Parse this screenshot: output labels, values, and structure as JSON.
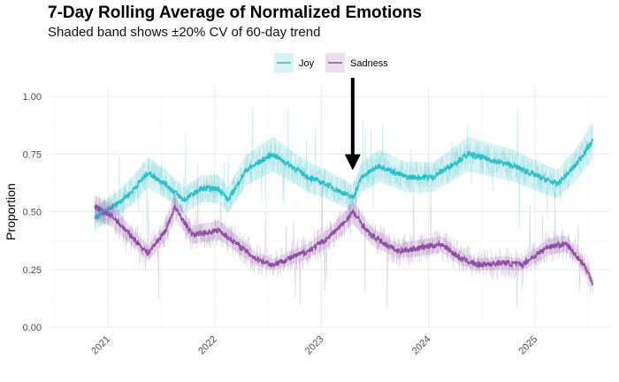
{
  "chart_data": {
    "type": "line",
    "title": "7-Day Rolling Average of Normalized Emotions",
    "subtitle": "Shaded band shows ±20% CV of 60-day trend",
    "xlabel": "",
    "ylabel": "Proportion",
    "ylim": [
      0,
      1
    ],
    "y_ticks": [
      "0.00",
      "0.25",
      "0.50",
      "0.75",
      "1.00"
    ],
    "x_ticks": [
      "2021",
      "2022",
      "2023",
      "2024",
      "2025"
    ],
    "grid": true,
    "legend_position": "top",
    "series": [
      {
        "name": "Joy",
        "color": "#2bbfc7",
        "x": [
          "2020-11",
          "2021-01",
          "2021-03",
          "2021-05",
          "2021-07",
          "2021-09",
          "2021-11",
          "2022-01",
          "2022-02",
          "2022-04",
          "2022-07",
          "2022-09",
          "2022-11",
          "2023-01",
          "2023-04",
          "2023-05",
          "2023-07",
          "2023-10",
          "2024-01",
          "2024-03",
          "2024-05",
          "2024-08",
          "2024-10",
          "2025-01",
          "2025-03",
          "2025-05",
          "2025-07"
        ],
        "values": [
          0.47,
          0.52,
          0.58,
          0.67,
          0.62,
          0.55,
          0.6,
          0.6,
          0.55,
          0.68,
          0.75,
          0.7,
          0.65,
          0.62,
          0.56,
          0.65,
          0.7,
          0.65,
          0.65,
          0.7,
          0.75,
          0.72,
          0.7,
          0.65,
          0.62,
          0.7,
          0.81
        ]
      },
      {
        "name": "Sadness",
        "color": "#8e4fa3",
        "x": [
          "2020-11",
          "2021-01",
          "2021-03",
          "2021-05",
          "2021-07",
          "2021-08",
          "2021-10",
          "2022-01",
          "2022-03",
          "2022-05",
          "2022-07",
          "2022-09",
          "2022-11",
          "2023-01",
          "2023-03",
          "2023-04",
          "2023-06",
          "2023-09",
          "2023-11",
          "2024-02",
          "2024-04",
          "2024-06",
          "2024-09",
          "2024-11",
          "2025-02",
          "2025-04",
          "2025-06",
          "2025-07"
        ],
        "values": [
          0.52,
          0.48,
          0.4,
          0.32,
          0.42,
          0.52,
          0.4,
          0.42,
          0.36,
          0.3,
          0.27,
          0.3,
          0.33,
          0.38,
          0.45,
          0.5,
          0.4,
          0.33,
          0.34,
          0.36,
          0.3,
          0.27,
          0.28,
          0.27,
          0.35,
          0.36,
          0.27,
          0.19
        ]
      }
    ],
    "annotations": [
      {
        "type": "arrow",
        "x": "2023-04",
        "y_from": 1.05,
        "y_to": 0.68,
        "color": "#000000"
      }
    ]
  }
}
